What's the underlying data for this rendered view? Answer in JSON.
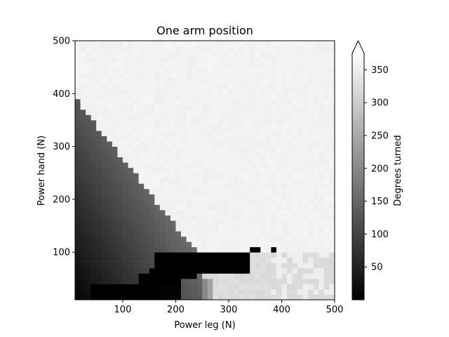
{
  "chart_data": {
    "type": "heatmap",
    "title": "One arm position",
    "xlabel": "Power leg (N)",
    "ylabel": "Power hand (N)",
    "xlim": [
      10,
      500
    ],
    "ylim": [
      10,
      500
    ],
    "xticks": [
      100,
      200,
      300,
      400,
      500
    ],
    "yticks": [
      100,
      200,
      300,
      400,
      500
    ],
    "grid_step_N": 10,
    "colormap": "gray",
    "colorbar": {
      "label": "Degrees turned",
      "range": [
        0,
        375
      ],
      "ticks": [
        50,
        100,
        150,
        200,
        250,
        300,
        350
      ],
      "extend": "max",
      "position": "right"
    },
    "regions": [
      {
        "region": "upper-right (high hand or high leg power)",
        "value_approx": 355
      },
      {
        "region": "lower-left wedge below line from (10,380) to (230,100)",
        "value_min": 10,
        "value_max": 180,
        "gradient": "increases with leg and hand power"
      },
      {
        "region": "band along bottom from leg 160 to 330, hand 60-90",
        "value_approx": 0
      },
      {
        "region": "lower-right corner (leg > 230, hand < 90)",
        "value_approx": 320
      },
      {
        "region": "isolated black cells",
        "points": [
          [
            340,
            95
          ],
          [
            380,
            100
          ]
        ],
        "value_approx": 0
      }
    ]
  }
}
